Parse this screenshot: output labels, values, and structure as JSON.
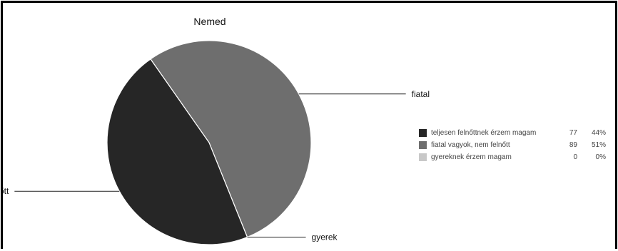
{
  "chart_data": {
    "type": "pie",
    "title": "Nemed",
    "slices": [
      {
        "label": "teljesen felnőttnek érzem magam",
        "callout": "teljesen felnőtt",
        "value": 77,
        "percent": "44%",
        "color": "#262626"
      },
      {
        "label": "fiatal vagyok, nem felnőtt",
        "callout": "fiatal",
        "value": 89,
        "percent": "51%",
        "color": "#6e6e6e"
      },
      {
        "label": "gyereknek érzem magam",
        "callout": "gyerek",
        "value": 0,
        "percent": "0%",
        "color": "#c8c8c8"
      }
    ],
    "legend_position": "right"
  }
}
